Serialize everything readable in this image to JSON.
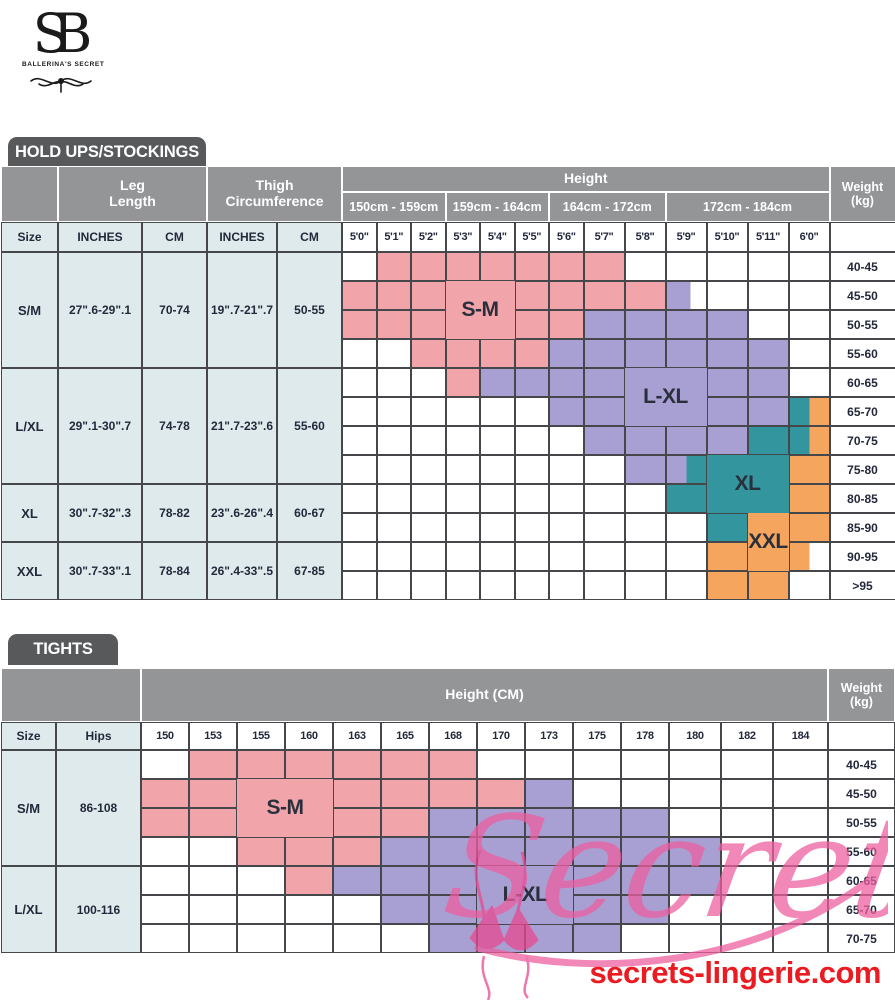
{
  "brand": {
    "monogram": "SB",
    "name": "BALLERINA'S SECRET"
  },
  "colors": {
    "pink": "#f2a4ab",
    "purple": "#a8a0d3",
    "teal": "#33969f",
    "orange": "#f6a55e",
    "header_gray": "#939597",
    "tab_gray": "#58595b",
    "light_cell": "#dfeaed",
    "grid_border": "#46474a",
    "text_dark": "#23283a",
    "url_red": "#ea1b21",
    "watermark_pink": "#ee5fa0"
  },
  "table1": {
    "title": "HOLD UPS/STOCKINGS",
    "headers": {
      "size": "Size",
      "inches": "INCHES",
      "cm": "CM",
      "leg_length": "Leg\nLength",
      "thigh_circumference": "Thigh\nCircumference",
      "height": "Height",
      "weight": "Weight\n(kg)"
    },
    "height_groups": [
      {
        "label": "150cm - 159cm",
        "span": 3
      },
      {
        "label": "159cm - 164cm",
        "span": 3
      },
      {
        "label": "164cm - 172cm",
        "span": 3
      },
      {
        "label": "172cm - 184cm",
        "span": 4
      }
    ],
    "height_cols": [
      "5'0\"",
      "5'1\"",
      "5'2\"",
      "5'3\"",
      "5'4\"",
      "5'5\"",
      "5'6\"",
      "5'7\"",
      "5'8\"",
      "5'9\"",
      "5'10\"",
      "5'11\"",
      "6'0\""
    ],
    "size_rows": [
      {
        "size": "S/M",
        "leg_inches": "27\".6-29\".1",
        "leg_cm": "70-74",
        "thigh_inches": "19\".7-21\".7",
        "thigh_cm": "50-55",
        "rows": 4
      },
      {
        "size": "L/XL",
        "leg_inches": "29\".1-30\".7",
        "leg_cm": "74-78",
        "thigh_inches": "21\".7-23\".6",
        "thigh_cm": "55-60",
        "rows": 4
      },
      {
        "size": "XL",
        "leg_inches": "30\".7-32\".3",
        "leg_cm": "78-82",
        "thigh_inches": "23\".6-26\".4",
        "thigh_cm": "60-67",
        "rows": 2
      },
      {
        "size": "XXL",
        "leg_inches": "30\".7-33\".1",
        "leg_cm": "78-84",
        "thigh_inches": "26\".4-33\".5",
        "thigh_cm": "67-85",
        "rows": 2
      }
    ],
    "weight_rows": [
      "40-45",
      "45-50",
      "50-55",
      "55-60",
      "60-65",
      "65-70",
      "70-75",
      "75-80",
      "80-85",
      "85-90",
      "90-95",
      ">95"
    ],
    "matrix": [
      [
        "w",
        "p",
        "p",
        "p",
        "p",
        "p",
        "p",
        "p",
        "w",
        "w",
        "w",
        "w",
        "w"
      ],
      [
        "p",
        "p",
        "p",
        "p",
        "p",
        "p",
        "p",
        "p",
        "p",
        "lw",
        "w",
        "w",
        "w"
      ],
      [
        "p",
        "p",
        "p",
        "p",
        "p",
        "p",
        "p",
        "l",
        "l",
        "l",
        "l",
        "w",
        "w"
      ],
      [
        "w",
        "w",
        "p",
        "p",
        "p",
        "p",
        "l",
        "l",
        "l",
        "l",
        "l",
        "l",
        "w"
      ],
      [
        "w",
        "w",
        "w",
        "p",
        "l",
        "l",
        "l",
        "l",
        "l",
        "l",
        "l",
        "l",
        "w"
      ],
      [
        "w",
        "w",
        "w",
        "w",
        "w",
        "w",
        "l",
        "l",
        "l",
        "l",
        "l",
        "l",
        "to"
      ],
      [
        "w",
        "w",
        "w",
        "w",
        "w",
        "w",
        "w",
        "l",
        "l",
        "l",
        "l",
        "t",
        "to"
      ],
      [
        "w",
        "w",
        "w",
        "w",
        "w",
        "w",
        "w",
        "w",
        "l",
        "lt",
        "t",
        "t",
        "o"
      ],
      [
        "w",
        "w",
        "w",
        "w",
        "w",
        "w",
        "w",
        "w",
        "w",
        "t",
        "t",
        "t",
        "o"
      ],
      [
        "w",
        "w",
        "w",
        "w",
        "w",
        "w",
        "w",
        "w",
        "w",
        "w",
        "t",
        "o",
        "o"
      ],
      [
        "w",
        "w",
        "w",
        "w",
        "w",
        "w",
        "w",
        "w",
        "w",
        "w",
        "o",
        "o",
        "ow"
      ],
      [
        "w",
        "w",
        "w",
        "w",
        "w",
        "w",
        "w",
        "w",
        "w",
        "w",
        "o",
        "o",
        "w"
      ]
    ],
    "region_labels": [
      {
        "text": "S-M",
        "color": "p",
        "col": 3,
        "colspan": 2,
        "row": 1,
        "rowspan": 2
      },
      {
        "text": "L-XL",
        "color": "l",
        "col": 8,
        "colspan": 2,
        "row": 4,
        "rowspan": 2
      },
      {
        "text": "XL",
        "color": "t",
        "col": 10,
        "colspan": 2,
        "row": 7,
        "rowspan": 2
      },
      {
        "text": "XXL",
        "color": "o",
        "col": 11,
        "colspan": 1,
        "row": 9,
        "rowspan": 2
      }
    ]
  },
  "table2": {
    "title": "TIGHTS",
    "headers": {
      "size": "Size",
      "hips": "Hips",
      "height": "Height (CM)",
      "weight": "Weight\n(kg)"
    },
    "height_cols": [
      "150",
      "153",
      "155",
      "160",
      "163",
      "165",
      "168",
      "170",
      "173",
      "175",
      "178",
      "180",
      "182",
      "184"
    ],
    "size_rows": [
      {
        "size": "S/M",
        "hips": "86-108",
        "rows": 4
      },
      {
        "size": "L/XL",
        "hips": "100-116",
        "rows": 3
      }
    ],
    "weight_rows": [
      "40-45",
      "45-50",
      "50-55",
      "55-60",
      "60-65",
      "65-70",
      "70-75"
    ],
    "matrix": [
      [
        "w",
        "p",
        "p",
        "p",
        "p",
        "p",
        "p",
        "w",
        "w",
        "w",
        "w",
        "w",
        "w",
        "w"
      ],
      [
        "p",
        "p",
        "p",
        "p",
        "p",
        "p",
        "p",
        "p",
        "l",
        "w",
        "w",
        "w",
        "w",
        "w"
      ],
      [
        "p",
        "p",
        "p",
        "p",
        "p",
        "p",
        "l",
        "l",
        "l",
        "l",
        "l",
        "w",
        "w",
        "w"
      ],
      [
        "w",
        "w",
        "p",
        "p",
        "p",
        "l",
        "l",
        "l",
        "l",
        "l",
        "l",
        "l",
        "w",
        "w"
      ],
      [
        "w",
        "w",
        "w",
        "p",
        "l",
        "l",
        "l",
        "l",
        "l",
        "l",
        "l",
        "l",
        "w",
        "w"
      ],
      [
        "w",
        "w",
        "w",
        "w",
        "w",
        "l",
        "l",
        "l",
        "l",
        "l",
        "l",
        "w",
        "w",
        "w"
      ],
      [
        "w",
        "w",
        "w",
        "w",
        "w",
        "w",
        "l",
        "l",
        "l",
        "l",
        "w",
        "w",
        "w",
        "w"
      ]
    ],
    "region_labels": [
      {
        "text": "S-M",
        "color": "p",
        "col": 2,
        "colspan": 2,
        "row": 1,
        "rowspan": 2
      },
      {
        "text": "L-XL",
        "color": "l",
        "col": 7,
        "colspan": 2,
        "row": 4,
        "rowspan": 2
      }
    ]
  },
  "footer": {
    "watermark": "Secrets",
    "url": "secrets-lingerie.com"
  }
}
